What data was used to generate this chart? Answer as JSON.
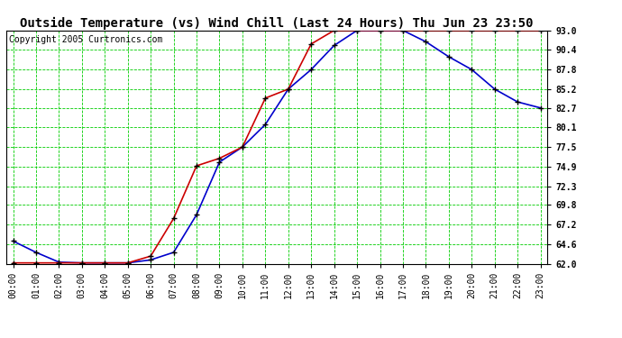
{
  "title": "Outside Temperature (vs) Wind Chill (Last 24 Hours) Thu Jun 23 23:50",
  "copyright": "Copyright 2005 Curtronics.com",
  "x_labels": [
    "00:00",
    "01:00",
    "02:00",
    "03:00",
    "04:00",
    "05:00",
    "06:00",
    "07:00",
    "08:00",
    "09:00",
    "10:00",
    "11:00",
    "12:00",
    "13:00",
    "14:00",
    "15:00",
    "16:00",
    "17:00",
    "18:00",
    "19:00",
    "20:00",
    "21:00",
    "22:00",
    "23:00"
  ],
  "y_ticks": [
    62.0,
    64.6,
    67.2,
    69.8,
    72.3,
    74.9,
    77.5,
    80.1,
    82.7,
    85.2,
    87.8,
    90.4,
    93.0
  ],
  "y_min": 62.0,
  "y_max": 93.0,
  "outside_temp": [
    65.0,
    63.5,
    62.2,
    62.1,
    62.1,
    62.1,
    62.5,
    63.5,
    68.5,
    75.5,
    77.5,
    80.5,
    85.2,
    87.8,
    91.0,
    93.0,
    93.0,
    93.0,
    91.5,
    89.5,
    87.8,
    85.2,
    83.5,
    82.7
  ],
  "wind_chill": [
    62.1,
    62.1,
    62.1,
    62.1,
    62.1,
    62.1,
    63.0,
    68.0,
    75.0,
    76.0,
    77.5,
    84.0,
    85.2,
    91.2,
    93.0,
    93.0,
    93.0,
    93.0,
    93.0,
    93.0,
    93.0,
    93.0,
    93.0,
    93.0
  ],
  "temp_color": "#0000cc",
  "wind_color": "#cc0000",
  "bg_color": "#ffffff",
  "grid_color": "#00cc00",
  "title_color": "#000000",
  "title_fontsize": 10,
  "copyright_fontsize": 7,
  "tick_fontsize": 7,
  "marker": "+",
  "marker_color": "#000000",
  "marker_size": 4,
  "linewidth": 1.2
}
